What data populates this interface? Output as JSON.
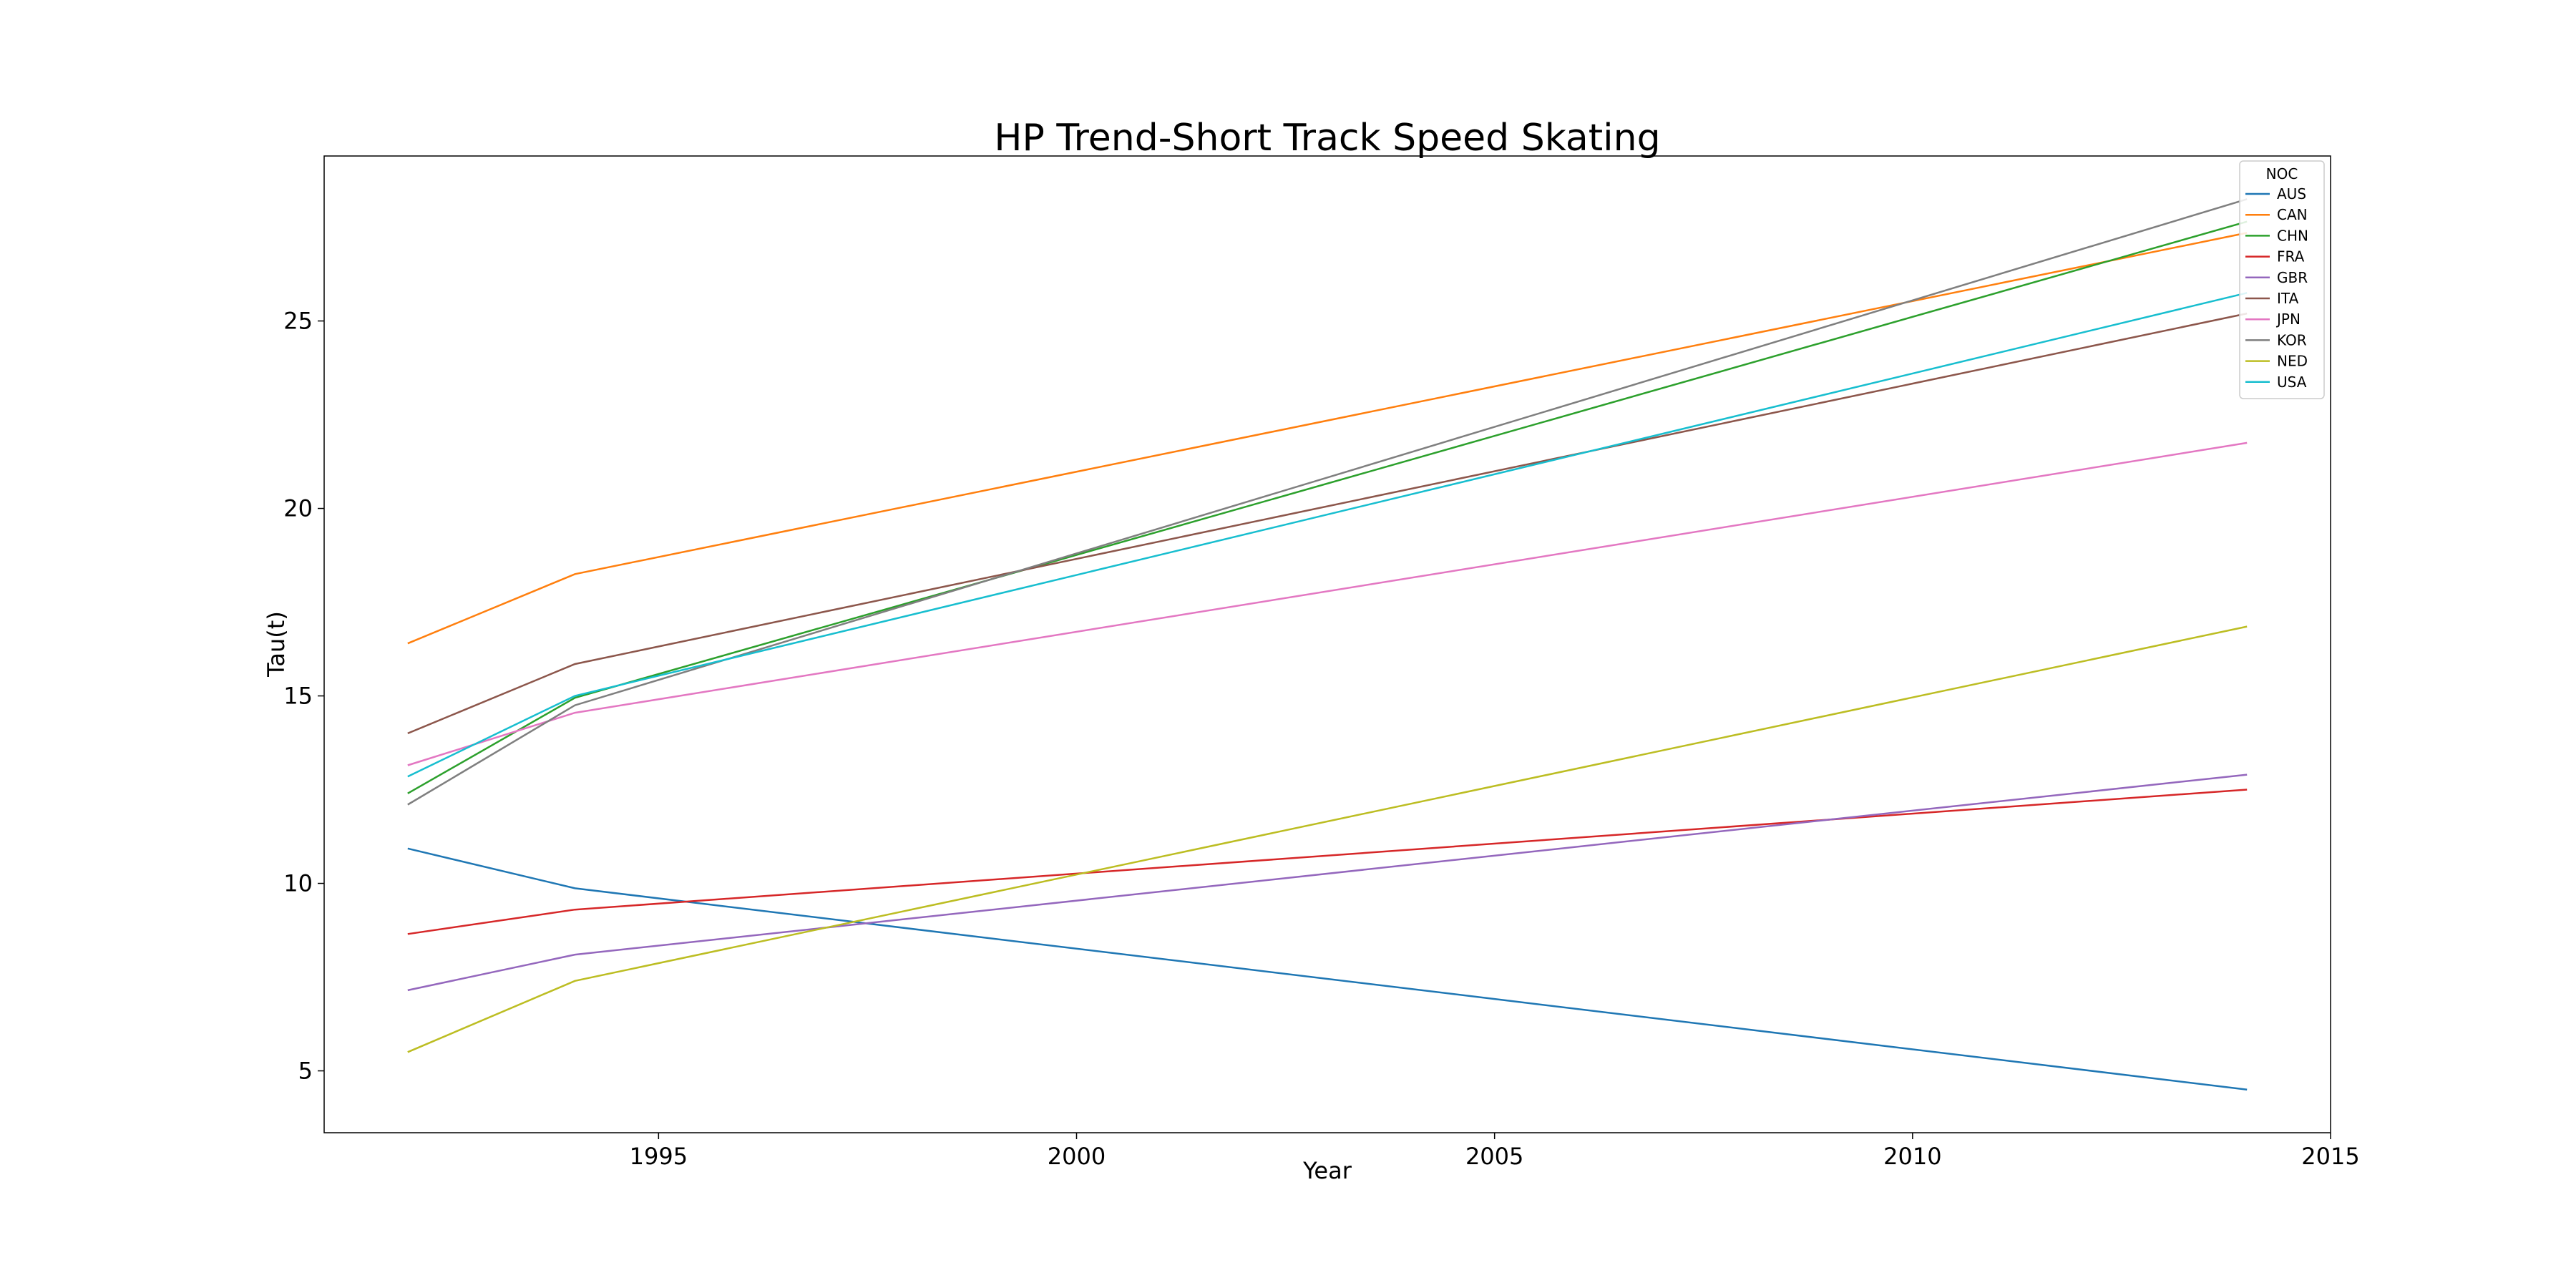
{
  "chart_data": {
    "type": "line",
    "title": "HP Trend-Short Track Speed Skating",
    "xlabel": "Year",
    "ylabel": "Tau(t)",
    "xlim": [
      1991,
      2015
    ],
    "ylim": [
      3.35,
      29.4
    ],
    "xticks": [
      1995,
      2000,
      2005,
      2010,
      2015
    ],
    "yticks": [
      5,
      10,
      15,
      20,
      25
    ],
    "grid": false,
    "legend": {
      "title": "NOC",
      "placement": "top-right"
    },
    "x": [
      1992,
      1994,
      2014
    ],
    "series": [
      {
        "name": "AUS",
        "color": "#1f77b4",
        "values": [
          10.93,
          9.87,
          4.5
        ]
      },
      {
        "name": "CAN",
        "color": "#ff7f0e",
        "values": [
          16.4,
          18.25,
          27.35
        ]
      },
      {
        "name": "CHN",
        "color": "#2ca02c",
        "values": [
          12.4,
          14.95,
          27.65
        ]
      },
      {
        "name": "FRA",
        "color": "#d62728",
        "values": [
          8.65,
          9.3,
          12.5
        ]
      },
      {
        "name": "GBR",
        "color": "#9467bd",
        "values": [
          7.15,
          8.1,
          12.9
        ]
      },
      {
        "name": "ITA",
        "color": "#8c564b",
        "values": [
          14.0,
          15.85,
          25.2
        ]
      },
      {
        "name": "JPN",
        "color": "#e377c2",
        "values": [
          13.15,
          14.55,
          21.75
        ]
      },
      {
        "name": "KOR",
        "color": "#7f7f7f",
        "values": [
          12.1,
          14.75,
          28.25
        ]
      },
      {
        "name": "NED",
        "color": "#bcbd22",
        "values": [
          5.5,
          7.4,
          16.85
        ]
      },
      {
        "name": "USA",
        "color": "#17becf",
        "values": [
          12.85,
          15.0,
          25.75
        ]
      }
    ]
  }
}
